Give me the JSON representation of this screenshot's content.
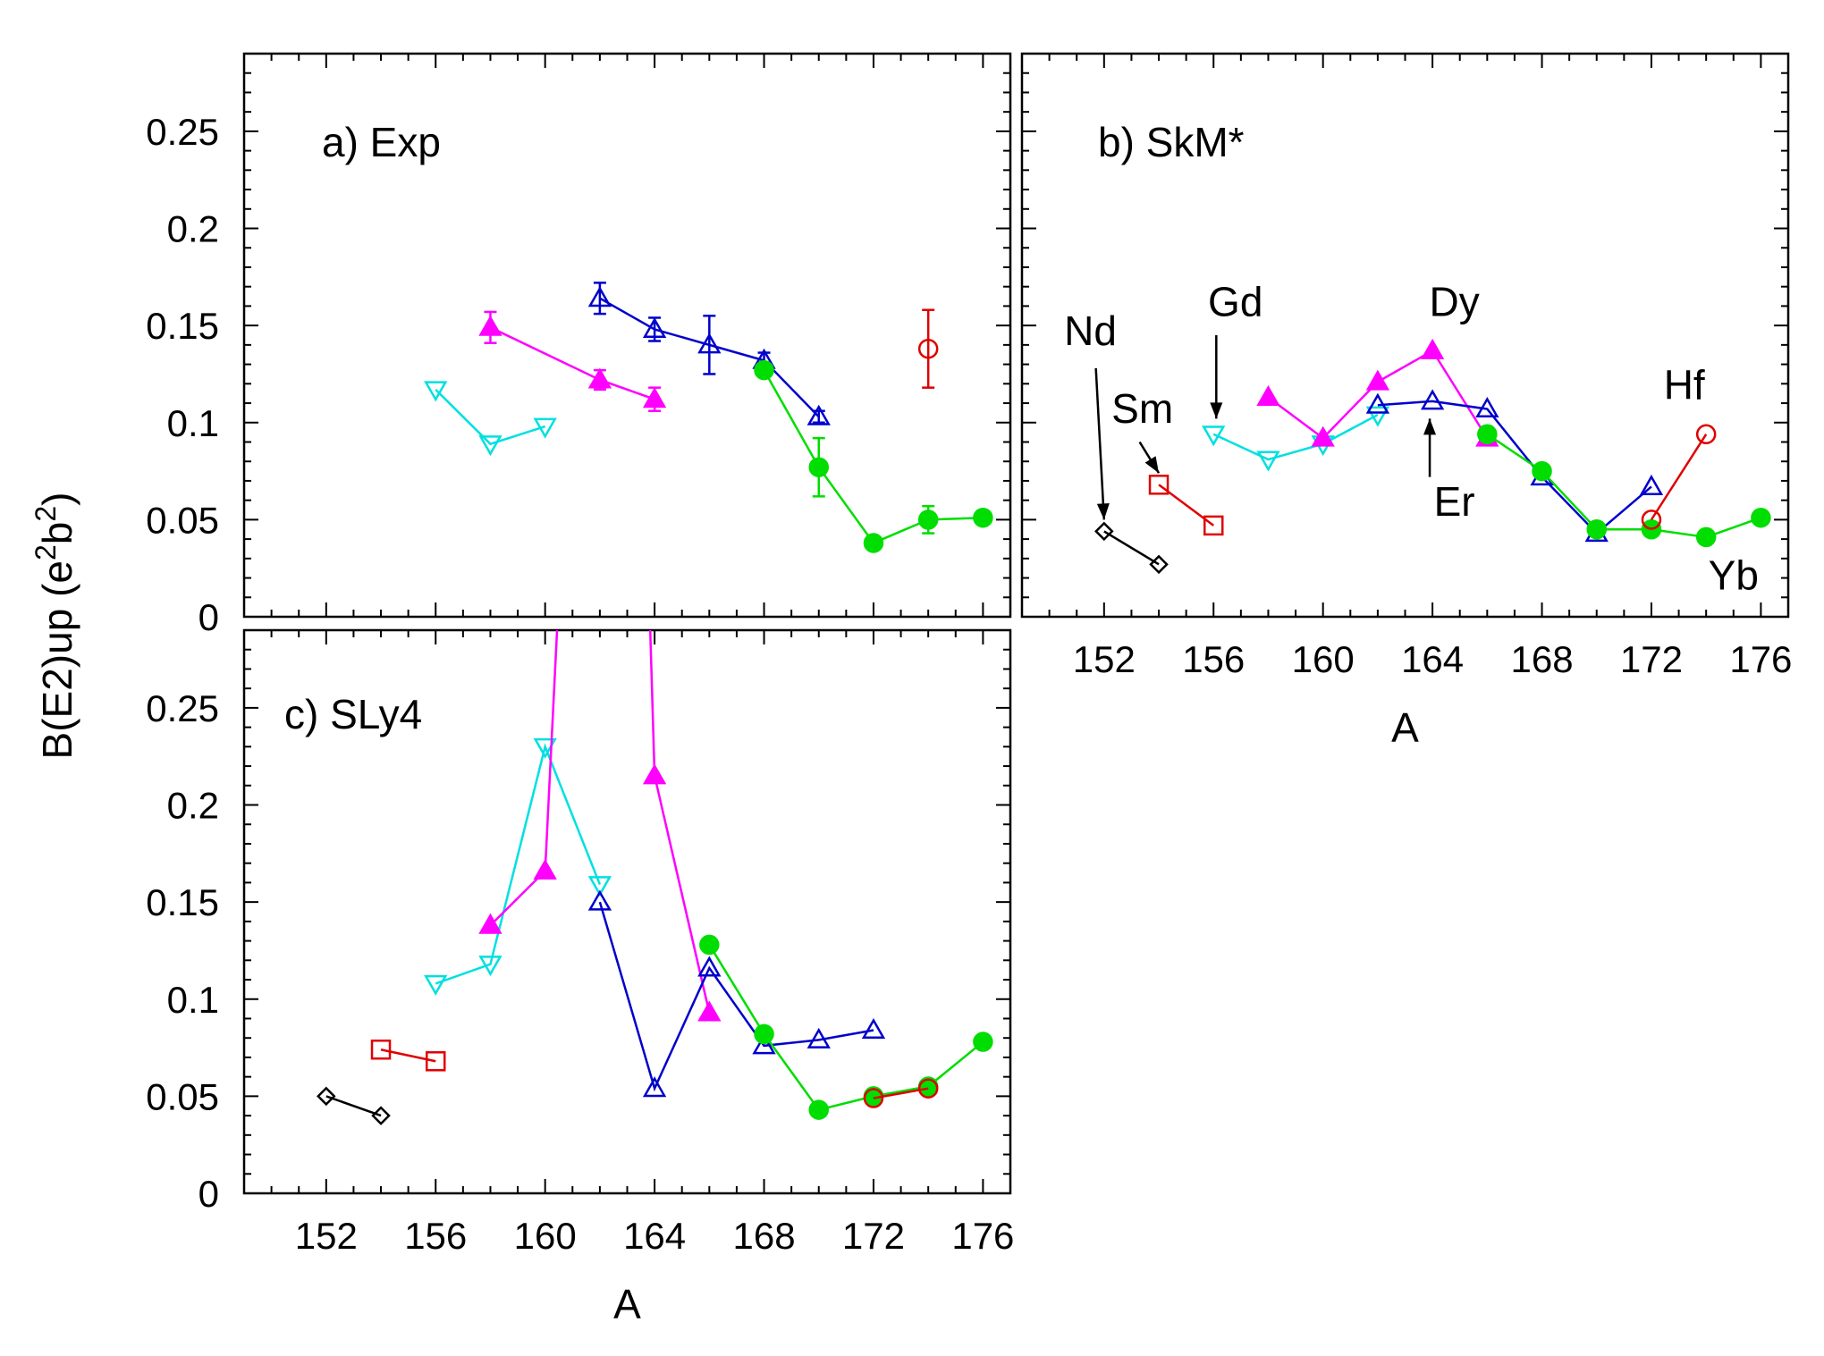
{
  "chart_data": {
    "type": "line",
    "ylabel": "B(E2)up (e2b2)",
    "ylabel_parts": {
      "base": "B(E2)up (e",
      "sup1": "2",
      "mid": "b",
      "sup2": "2",
      "end": ")"
    },
    "xlabel": "A",
    "xlim": [
      149,
      177
    ],
    "ylim": [
      0,
      0.29
    ],
    "x_ticks": [
      152,
      156,
      160,
      164,
      168,
      172,
      176
    ],
    "x_tick_labels": [
      "152",
      "156",
      "160",
      "164",
      "168",
      "172",
      "176"
    ],
    "y_ticks": [
      0,
      0.05,
      0.1,
      0.15,
      0.2,
      0.25
    ],
    "y_tick_labels": [
      "0",
      "0.05",
      "0.1",
      "0.15",
      "0.2",
      "0.25"
    ],
    "colors": {
      "Nd": "#000000",
      "Sm": "#e00000",
      "Gd": "#00e0e0",
      "Dy": "#ff00ff",
      "Er": "#0000cc",
      "Yb": "#00dd00",
      "Hf": "#e00000"
    },
    "markers": {
      "Nd": "diamond-open",
      "Sm": "square-open",
      "Gd": "triangle-down-open",
      "Dy": "triangle-up-filled",
      "Er": "triangle-up-open",
      "Yb": "circle-filled",
      "Hf": "circle-open"
    },
    "panels": [
      {
        "id": "a",
        "label": "a) Exp",
        "series": [
          {
            "element": "Gd",
            "x": [
              156,
              158,
              160
            ],
            "y": [
              0.117,
              0.089,
              0.098
            ]
          },
          {
            "element": "Dy",
            "x": [
              158,
              162,
              164
            ],
            "y": [
              0.149,
              0.122,
              0.112
            ],
            "err": [
              0.008,
              0.005,
              0.006
            ]
          },
          {
            "element": "Er",
            "x": [
              162,
              164,
              166,
              168,
              170
            ],
            "y": [
              0.164,
              0.148,
              0.14,
              0.132,
              0.103
            ],
            "err": [
              0.008,
              0.006,
              0.015,
              0.004,
              0.003
            ]
          },
          {
            "element": "Yb",
            "x": [
              168,
              170,
              172,
              174,
              176
            ],
            "y": [
              0.127,
              0.077,
              0.038,
              0.05,
              0.051
            ],
            "err": [
              0,
              0.015,
              0,
              0.007,
              0
            ]
          },
          {
            "element": "Hf",
            "x": [
              174
            ],
            "y": [
              0.138
            ],
            "err": [
              0.02
            ]
          }
        ],
        "annotations": []
      },
      {
        "id": "b",
        "label": "b) SkM*",
        "series": [
          {
            "element": "Nd",
            "x": [
              152,
              154
            ],
            "y": [
              0.044,
              0.027
            ]
          },
          {
            "element": "Sm",
            "x": [
              154,
              156
            ],
            "y": [
              0.068,
              0.047
            ]
          },
          {
            "element": "Gd",
            "x": [
              156,
              158,
              160,
              162
            ],
            "y": [
              0.094,
              0.081,
              0.089,
              0.104
            ]
          },
          {
            "element": "Dy",
            "x": [
              158,
              160,
              162,
              164,
              166
            ],
            "y": [
              0.113,
              0.092,
              0.121,
              0.137,
              0.092
            ]
          },
          {
            "element": "Er",
            "x": [
              162,
              164,
              166,
              168,
              170,
              172
            ],
            "y": [
              0.109,
              0.111,
              0.107,
              0.072,
              0.043,
              0.067
            ]
          },
          {
            "element": "Yb",
            "x": [
              166,
              168,
              170,
              172,
              174,
              176
            ],
            "y": [
              0.094,
              0.075,
              0.045,
              0.045,
              0.041,
              0.051
            ]
          },
          {
            "element": "Hf",
            "x": [
              172,
              174
            ],
            "y": [
              0.05,
              0.094
            ]
          }
        ],
        "annotations": [
          {
            "text": "Nd",
            "tx": 151.5,
            "ty": 0.14,
            "arrow": [
              [
                151.7,
                0.128
              ],
              [
                152,
                0.05
              ]
            ]
          },
          {
            "text": "Sm",
            "tx": 153.4,
            "ty": 0.1,
            "arrow": [
              [
                153.3,
                0.09
              ],
              [
                154,
                0.074
              ]
            ]
          },
          {
            "text": "Gd",
            "tx": 156.8,
            "ty": 0.155,
            "arrow": [
              [
                156.1,
                0.145
              ],
              [
                156.1,
                0.102
              ]
            ]
          },
          {
            "text": "Dy",
            "tx": 164.8,
            "ty": 0.155,
            "arrow": null
          },
          {
            "text": "Er",
            "tx": 164.8,
            "ty": 0.052,
            "arrow": [
              [
                163.9,
                0.072
              ],
              [
                163.9,
                0.102
              ]
            ]
          },
          {
            "text": "Hf",
            "tx": 173.2,
            "ty": 0.112,
            "arrow": null
          },
          {
            "text": "Yb",
            "tx": 175,
            "ty": 0.014,
            "arrow": null
          }
        ]
      },
      {
        "id": "c",
        "label": "c) SLy4",
        "series": [
          {
            "element": "Nd",
            "x": [
              152,
              154
            ],
            "y": [
              0.05,
              0.04
            ]
          },
          {
            "element": "Sm",
            "x": [
              154,
              156
            ],
            "y": [
              0.074,
              0.068
            ]
          },
          {
            "element": "Gd",
            "x": [
              156,
              158,
              160,
              162
            ],
            "y": [
              0.108,
              0.118,
              0.23,
              0.159
            ]
          },
          {
            "element": "Dy",
            "x": [
              158,
              160,
              161,
              163.5,
              164,
              166
            ],
            "y": [
              0.138,
              0.166,
              0.45,
              0.45,
              0.215,
              0.093
            ],
            "marked": [
              true,
              true,
              false,
              false,
              true,
              true
            ]
          },
          {
            "element": "Er",
            "x": [
              162,
              164,
              166,
              168,
              170,
              172
            ],
            "y": [
              0.15,
              0.054,
              0.116,
              0.076,
              0.079,
              0.084
            ]
          },
          {
            "element": "Yb",
            "x": [
              166,
              168,
              170,
              172,
              174,
              176
            ],
            "y": [
              0.128,
              0.082,
              0.043,
              0.05,
              0.055,
              0.078
            ]
          },
          {
            "element": "Hf",
            "x": [
              172,
              174
            ],
            "y": [
              0.049,
              0.054
            ]
          }
        ],
        "annotations": []
      }
    ]
  }
}
